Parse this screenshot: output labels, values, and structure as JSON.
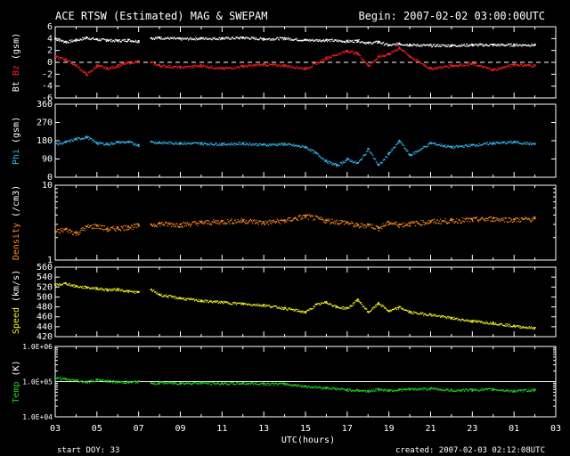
{
  "header": {
    "title": "ACE RTSW (Estimated) MAG & SWEPAM",
    "begin": "Begin: 2007-02-02 03:00:00UTC"
  },
  "footer": {
    "start_doy": "start DOY:  33",
    "created": "created: 2007-02-03 02:12:08UTC"
  },
  "colors": {
    "background": "#000000",
    "axes": "#ffffff",
    "bt": "#ffffff",
    "bz": "#ff2020",
    "phi": "#30b8f0",
    "density": "#ff8c20",
    "speed": "#f0f020",
    "temp": "#20d020"
  },
  "chart_data": [
    {
      "type": "scatter",
      "ylabel_parts": [
        "Bt",
        "Bz",
        "(gsm)"
      ],
      "ylim": [
        -6,
        6
      ],
      "yticks": [
        6,
        4,
        2,
        0,
        -2,
        -4,
        -6
      ],
      "ytick_labels": [
        "6",
        "4",
        "2",
        "0",
        "-2",
        "-4",
        "-6"
      ],
      "dashed_zero": true,
      "series": [
        {
          "name": "Bt",
          "color_key": "bt",
          "x": [
            3,
            3.5,
            4,
            4.5,
            5,
            5.5,
            6,
            6.5,
            7,
            7.2,
            7.6,
            8,
            9,
            10,
            11,
            12,
            13,
            14,
            15,
            16,
            17,
            17.5,
            18,
            18.5,
            19,
            19.5,
            20,
            21,
            22,
            23,
            24,
            25,
            26
          ],
          "y": [
            4.0,
            3.5,
            3.8,
            4.2,
            3.9,
            3.8,
            3.7,
            3.8,
            3.6,
            null,
            4.1,
            4.2,
            4.0,
            4.1,
            4.1,
            4.2,
            4.0,
            4.1,
            3.8,
            3.8,
            3.6,
            3.7,
            3.3,
            3.5,
            2.9,
            3.2,
            3.0,
            2.9,
            2.9,
            3.0,
            3.0,
            3.0,
            3.0
          ]
        },
        {
          "name": "Bz",
          "color_key": "bz",
          "x": [
            3,
            3.5,
            4,
            4.5,
            5,
            5.5,
            6,
            6.5,
            7,
            7.2,
            7.6,
            8,
            9,
            10,
            11,
            12,
            13,
            14,
            15,
            16,
            17,
            17.5,
            18,
            18.5,
            19,
            19.5,
            20,
            21,
            22,
            23,
            24,
            25,
            26
          ],
          "y": [
            1.0,
            0.5,
            -0.5,
            -2.0,
            -0.5,
            -1.0,
            -0.5,
            0.0,
            0.2,
            null,
            0.0,
            -0.5,
            -0.8,
            -0.5,
            -1.0,
            -0.6,
            -0.3,
            -0.5,
            -1.0,
            0.8,
            2.0,
            1.5,
            -0.5,
            1.0,
            1.5,
            2.5,
            1.0,
            -1.0,
            -0.5,
            -0.2,
            -1.2,
            -0.3,
            -0.5
          ]
        }
      ]
    },
    {
      "type": "scatter",
      "ylabel_parts": [
        "Phi",
        "(gsm)"
      ],
      "ylim": [
        0,
        360
      ],
      "yticks": [
        360,
        270,
        180,
        90,
        0
      ],
      "ytick_labels": [
        "360",
        "270",
        "180",
        "90",
        "0"
      ],
      "series": [
        {
          "name": "Phi",
          "color_key": "phi",
          "x": [
            3,
            3.5,
            4,
            4.5,
            5,
            5.5,
            6,
            6.5,
            7,
            7.2,
            7.6,
            8,
            9,
            10,
            11,
            12,
            13,
            14,
            15,
            15.5,
            16,
            16.5,
            17,
            17.5,
            18,
            18.5,
            19,
            19.5,
            20,
            21,
            22,
            23,
            24,
            25,
            26
          ],
          "y": [
            165,
            175,
            190,
            200,
            170,
            165,
            175,
            175,
            160,
            null,
            175,
            172,
            170,
            168,
            165,
            168,
            162,
            165,
            150,
            120,
            80,
            60,
            90,
            70,
            140,
            60,
            120,
            180,
            110,
            170,
            150,
            160,
            170,
            175,
            165
          ]
        }
      ]
    },
    {
      "type": "scatter",
      "ylabel_parts": [
        "Density",
        "(/cm3)"
      ],
      "ylim": [
        1,
        10
      ],
      "log_scale": true,
      "yticks": [
        10,
        1
      ],
      "ytick_labels": [
        "10",
        "1"
      ],
      "series": [
        {
          "name": "Density",
          "color_key": "density",
          "x": [
            3,
            3.5,
            4,
            4.5,
            5,
            5.5,
            6,
            6.5,
            7,
            7.2,
            7.6,
            8,
            9,
            10,
            11,
            12,
            13,
            14,
            15,
            16,
            17,
            17.5,
            18,
            18.5,
            19,
            19.5,
            20,
            21,
            22,
            23,
            24,
            25,
            26
          ],
          "y": [
            2.4,
            2.6,
            2.3,
            2.8,
            2.9,
            2.6,
            2.7,
            2.8,
            2.9,
            null,
            3.0,
            3.1,
            3.0,
            3.2,
            3.3,
            3.4,
            3.2,
            3.4,
            3.9,
            3.4,
            3.2,
            2.9,
            3.0,
            2.7,
            3.2,
            3.0,
            3.1,
            3.3,
            3.4,
            3.5,
            3.6,
            3.5,
            3.6
          ]
        }
      ]
    },
    {
      "type": "scatter",
      "ylabel_parts": [
        "Speed",
        "(km/s)"
      ],
      "ylim": [
        420,
        560
      ],
      "yticks": [
        560,
        540,
        520,
        500,
        480,
        460,
        440,
        420
      ],
      "ytick_labels": [
        "560",
        "540",
        "520",
        "500",
        "480",
        "460",
        "440",
        "420"
      ],
      "series": [
        {
          "name": "Speed",
          "color_key": "speed",
          "x": [
            3,
            3.5,
            4,
            4.5,
            5,
            5.5,
            6,
            6.5,
            7,
            7.2,
            7.6,
            8,
            9,
            10,
            11,
            12,
            13,
            14,
            15,
            15.5,
            16,
            16.5,
            17,
            17.5,
            18,
            18.5,
            19,
            19.5,
            20,
            21,
            22,
            23,
            24,
            25,
            26
          ],
          "y": [
            525,
            528,
            522,
            520,
            518,
            515,
            516,
            512,
            510,
            null,
            515,
            505,
            498,
            493,
            490,
            487,
            484,
            478,
            470,
            485,
            490,
            480,
            478,
            495,
            470,
            488,
            472,
            480,
            470,
            465,
            458,
            452,
            448,
            442,
            438
          ]
        }
      ]
    },
    {
      "type": "scatter",
      "ylabel_parts": [
        "Temp",
        "(K)"
      ],
      "ylim": [
        10000,
        1000000
      ],
      "log_scale": true,
      "yticks": [
        1000000,
        100000,
        10000
      ],
      "ytick_labels": [
        "1.0E+06",
        "1.0E+05",
        "1.0E+04"
      ],
      "reference_line": 100000,
      "series": [
        {
          "name": "Temp",
          "color_key": "temp",
          "x": [
            3,
            3.5,
            4,
            4.5,
            5,
            5.5,
            6,
            6.5,
            7,
            7.2,
            7.6,
            8,
            9,
            10,
            11,
            12,
            13,
            14,
            15,
            16,
            17,
            17.5,
            18,
            18.5,
            19,
            19.5,
            20,
            21,
            22,
            23,
            24,
            25,
            26
          ],
          "y": [
            130000,
            120000,
            110000,
            100000,
            115000,
            105000,
            100000,
            98000,
            102000,
            null,
            90000,
            95000,
            92000,
            94000,
            90000,
            92000,
            90000,
            88000,
            75000,
            68000,
            60000,
            58000,
            55000,
            62000,
            58000,
            60000,
            62000,
            65000,
            58000,
            60000,
            62000,
            55000,
            60000
          ]
        }
      ]
    }
  ],
  "x_axis": {
    "label": "UTC(hours)",
    "range": [
      3,
      27
    ],
    "major_ticks": [
      3,
      5,
      7,
      9,
      11,
      13,
      15,
      17,
      19,
      21,
      23,
      25,
      27
    ],
    "tick_labels": [
      "03",
      "05",
      "07",
      "09",
      "11",
      "13",
      "15",
      "17",
      "19",
      "21",
      "23",
      "01",
      "03"
    ]
  }
}
